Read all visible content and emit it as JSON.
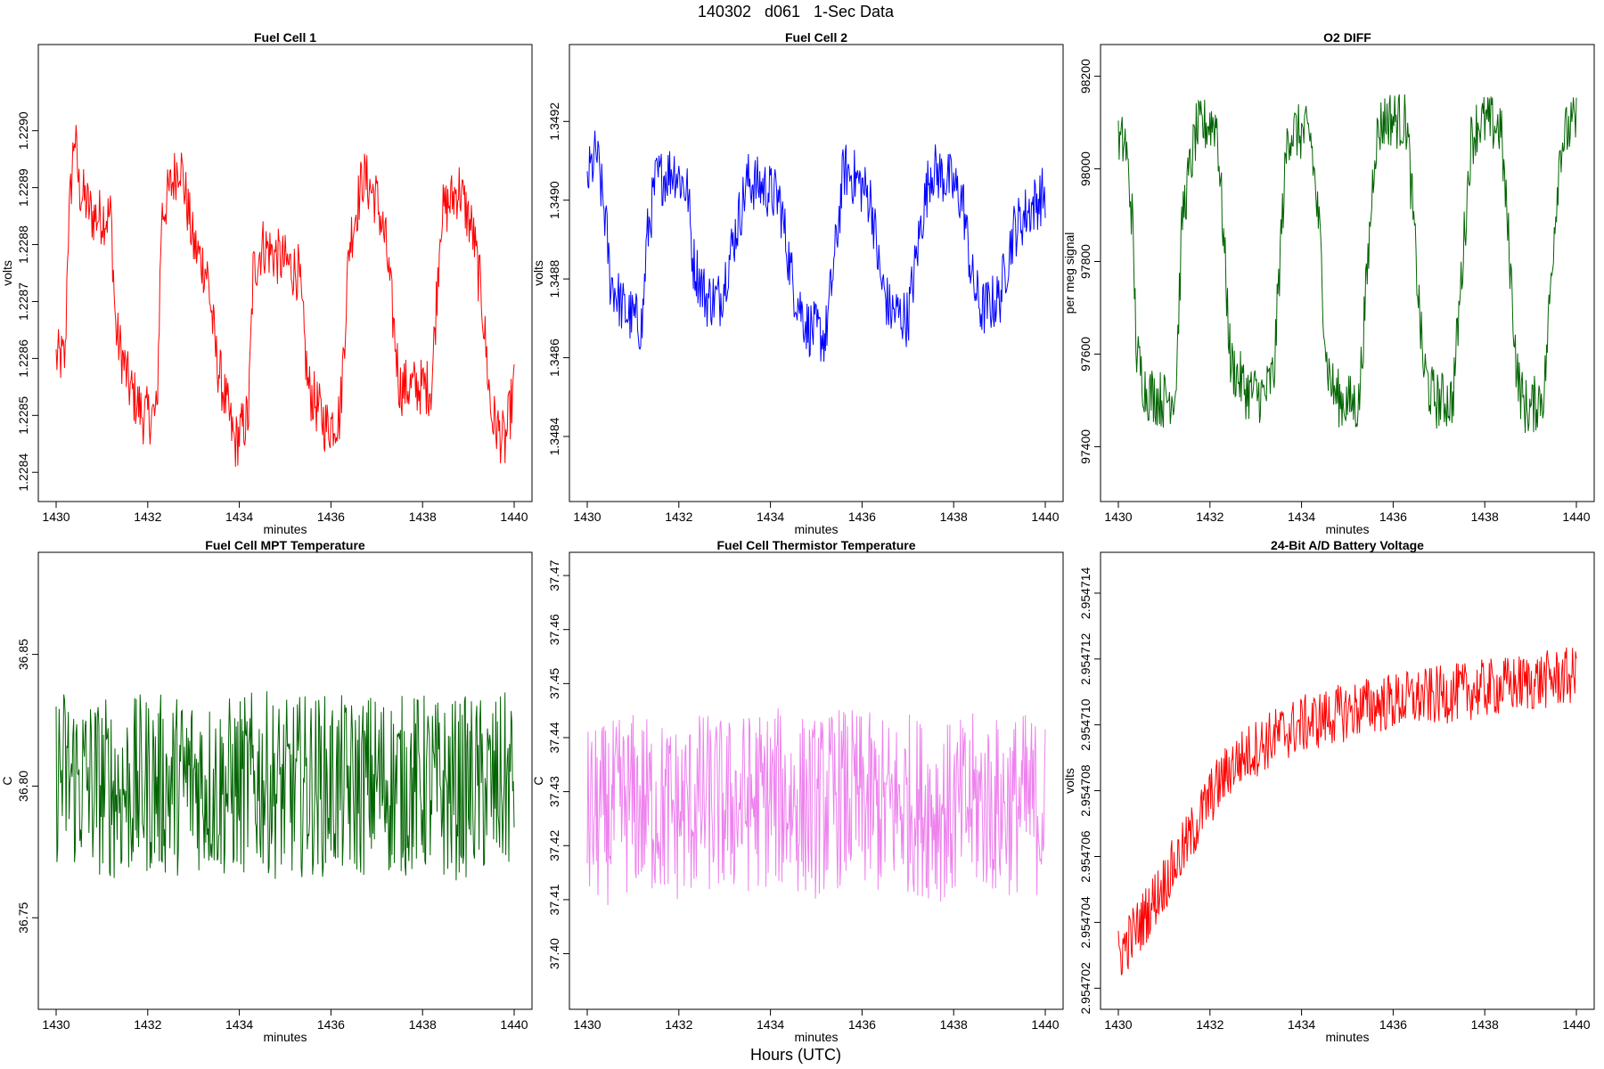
{
  "figure": {
    "suptitle": "140302   d061   1-Sec Data",
    "outer_xlabel": "Hours (UTC)"
  },
  "chart_data": [
    {
      "type": "line",
      "title": "Fuel Cell 1",
      "xlabel": "minutes",
      "ylabel": "volts",
      "color": "#ff0000",
      "xlim": [
        1430,
        1440
      ],
      "ylim": [
        1.22838,
        1.22912
      ],
      "xticks": [
        1430,
        1432,
        1434,
        1436,
        1438,
        1440
      ],
      "yticks": [
        1.2284,
        1.2285,
        1.2286,
        1.2287,
        1.2288,
        1.2289,
        1.229
      ],
      "ytick_labels": [
        "1.2284",
        "1.2285",
        "1.2286",
        "1.2287",
        "1.2288",
        "1.2289",
        "1.2290"
      ],
      "series": [
        {
          "name": "Fuel Cell 1",
          "x": [
            1430.0,
            1430.2,
            1430.25,
            1430.4,
            1430.5,
            1430.8,
            1431.2,
            1431.3,
            1431.6,
            1431.9,
            1432.2,
            1432.3,
            1432.7,
            1433.0,
            1433.3,
            1433.5,
            1433.9,
            1434.2,
            1434.3,
            1434.5,
            1434.8,
            1435.3,
            1435.5,
            1435.9,
            1436.2,
            1436.4,
            1436.7,
            1437.0,
            1437.2,
            1437.5,
            1437.9,
            1438.2,
            1438.4,
            1438.8,
            1439.1,
            1439.3,
            1439.5,
            1439.8,
            1440.0
          ],
          "y": [
            1.2286,
            1.2286,
            1.2288,
            1.229,
            1.2289,
            1.22885,
            1.22885,
            1.22865,
            1.22855,
            1.2285,
            1.2285,
            1.22885,
            1.22895,
            1.2288,
            1.22875,
            1.2286,
            1.22845,
            1.2285,
            1.22875,
            1.2288,
            1.22878,
            1.22875,
            1.22855,
            1.22848,
            1.2285,
            1.2288,
            1.22892,
            1.22888,
            1.2288,
            1.22855,
            1.22855,
            1.22855,
            1.22885,
            1.2289,
            1.22882,
            1.2287,
            1.2285,
            1.22845,
            1.22855
          ]
        }
      ]
    },
    {
      "type": "line",
      "title": "Fuel Cell 2",
      "xlabel": "minutes",
      "ylabel": "volts",
      "color": "#0000ff",
      "xlim": [
        1430,
        1440
      ],
      "ylim": [
        1.34828,
        1.34935
      ],
      "xticks": [
        1430,
        1432,
        1434,
        1436,
        1438,
        1440
      ],
      "yticks": [
        1.3484,
        1.3486,
        1.3488,
        1.349,
        1.3492
      ],
      "ytick_labels": [
        "1.3484",
        "1.3486",
        "1.3488",
        "1.3490",
        "1.3492"
      ],
      "series": [
        {
          "name": "Fuel Cell 2",
          "x": [
            1430.0,
            1430.2,
            1430.4,
            1430.5,
            1430.8,
            1431.2,
            1431.3,
            1431.5,
            1431.9,
            1432.2,
            1432.3,
            1432.6,
            1432.9,
            1433.3,
            1433.5,
            1433.9,
            1434.2,
            1434.5,
            1434.8,
            1435.2,
            1435.4,
            1435.6,
            1435.9,
            1436.2,
            1436.4,
            1436.6,
            1437.0,
            1437.3,
            1437.5,
            1437.9,
            1438.2,
            1438.4,
            1438.6,
            1439.0,
            1439.3,
            1439.6,
            1440.0
          ],
          "y": [
            1.34905,
            1.34912,
            1.34895,
            1.3488,
            1.34872,
            1.34868,
            1.3489,
            1.34905,
            1.34908,
            1.34902,
            1.34885,
            1.34875,
            1.34875,
            1.34895,
            1.34905,
            1.34903,
            1.349,
            1.34878,
            1.34868,
            1.34865,
            1.34885,
            1.34908,
            1.34905,
            1.349,
            1.3488,
            1.34872,
            1.3487,
            1.34895,
            1.34908,
            1.34905,
            1.349,
            1.3488,
            1.34872,
            1.34875,
            1.34892,
            1.34897,
            1.34902
          ]
        }
      ]
    },
    {
      "type": "line",
      "title": "O2 DIFF",
      "xlabel": "minutes",
      "ylabel": "per meg signal",
      "color": "#006400",
      "xlim": [
        1430,
        1440
      ],
      "ylim": [
        97320,
        98230
      ],
      "xticks": [
        1430,
        1432,
        1434,
        1436,
        1438,
        1440
      ],
      "yticks": [
        97400,
        97600,
        97800,
        98000,
        98200
      ],
      "ytick_labels": [
        "97400",
        "97600",
        "97800",
        "98000",
        "98200"
      ],
      "series": [
        {
          "name": "O2 DIFF",
          "x": [
            1430.0,
            1430.15,
            1430.3,
            1430.4,
            1430.6,
            1431.0,
            1431.25,
            1431.4,
            1431.7,
            1432.0,
            1432.15,
            1432.3,
            1432.45,
            1432.8,
            1433.2,
            1433.4,
            1433.55,
            1433.7,
            1433.85,
            1434.2,
            1434.4,
            1434.55,
            1434.7,
            1434.85,
            1435.25,
            1435.45,
            1435.6,
            1435.75,
            1435.9,
            1436.3,
            1436.5,
            1436.65,
            1436.8,
            1436.95,
            1437.3,
            1437.55,
            1437.7,
            1437.85,
            1438.0,
            1438.35,
            1438.55,
            1438.7,
            1438.85,
            1439.0,
            1439.3,
            1439.5,
            1439.65,
            1439.8,
            1440.0
          ],
          "y": [
            98050,
            98060,
            97900,
            97600,
            97520,
            97500,
            97520,
            97900,
            98080,
            98100,
            98100,
            97850,
            97580,
            97520,
            97510,
            97560,
            97850,
            98080,
            98080,
            98070,
            97850,
            97580,
            97520,
            97500,
            97490,
            97800,
            98050,
            98100,
            98110,
            98100,
            97800,
            97580,
            97520,
            97500,
            97500,
            97850,
            98060,
            98100,
            98100,
            98090,
            97800,
            97560,
            97490,
            97480,
            97520,
            97850,
            98050,
            98080,
            98100
          ]
        }
      ]
    },
    {
      "type": "line",
      "title": "Fuel Cell MPT Temperature",
      "xlabel": "minutes",
      "ylabel": "C",
      "color": "#006400",
      "xlim": [
        1430,
        1440
      ],
      "ylim": [
        36.722,
        36.882
      ],
      "xticks": [
        1430,
        1432,
        1434,
        1436,
        1438,
        1440
      ],
      "yticks": [
        36.75,
        36.8,
        36.85
      ],
      "ytick_labels": [
        "36.75",
        "36.80",
        "36.85"
      ],
      "series": [
        {
          "name": "Fuel Cell MPT Temperature",
          "x": [
            1430.0,
            1430.5,
            1431.0,
            1431.5,
            1432.0,
            1432.5,
            1433.0,
            1433.5,
            1434.0,
            1434.5,
            1435.0,
            1435.5,
            1436.0,
            1436.5,
            1437.0,
            1437.5,
            1438.0,
            1438.5,
            1439.0,
            1439.5,
            1440.0
          ],
          "y": [
            36.805,
            36.802,
            36.8,
            36.798,
            36.801,
            36.8,
            36.803,
            36.799,
            36.8,
            36.802,
            36.798,
            36.801,
            36.8,
            36.799,
            36.802,
            36.8,
            36.801,
            36.798,
            36.8,
            36.799,
            36.802
          ],
          "noise_amplitude": 0.035
        }
      ]
    },
    {
      "type": "line",
      "title": "Fuel Cell Thermistor Temperature",
      "xlabel": "minutes",
      "ylabel": "C",
      "color": "#ee82ee",
      "xlim": [
        1430,
        1440
      ],
      "ylim": [
        37.393,
        37.471
      ],
      "xticks": [
        1430,
        1432,
        1434,
        1436,
        1438,
        1440
      ],
      "yticks": [
        37.4,
        37.41,
        37.42,
        37.43,
        37.44,
        37.45,
        37.46,
        37.47
      ],
      "ytick_labels": [
        "37.40",
        "37.41",
        "37.42",
        "37.43",
        "37.44",
        "37.45",
        "37.46",
        "37.47"
      ],
      "series": [
        {
          "name": "Fuel Cell Thermistor Temperature",
          "x": [
            1430.0,
            1430.5,
            1431.0,
            1431.5,
            1432.0,
            1432.5,
            1433.0,
            1433.5,
            1434.0,
            1434.5,
            1435.0,
            1435.5,
            1436.0,
            1436.5,
            1437.0,
            1437.5,
            1438.0,
            1438.5,
            1439.0,
            1439.5,
            1440.0
          ],
          "y": [
            37.425,
            37.426,
            37.428,
            37.427,
            37.426,
            37.428,
            37.427,
            37.428,
            37.429,
            37.428,
            37.427,
            37.429,
            37.428,
            37.427,
            37.428,
            37.427,
            37.426,
            37.428,
            37.427,
            37.428,
            37.427
          ],
          "noise_amplitude": 0.017
        }
      ]
    },
    {
      "type": "line",
      "title": "24-Bit A/D Battery Voltage",
      "xlabel": "minutes",
      "ylabel": "volts",
      "color": "#ff0000",
      "xlim": [
        1430,
        1440
      ],
      "ylim": [
        2.9547019,
        2.9547147
      ],
      "xticks": [
        1430,
        1432,
        1434,
        1436,
        1438,
        1440
      ],
      "yticks": [
        2.954702,
        2.954704,
        2.954706,
        2.954708,
        2.95471,
        2.954712,
        2.954714
      ],
      "ytick_labels": [
        "2.954702",
        "2.954704",
        "2.954706",
        "2.954708",
        "2.954710",
        "2.954712",
        "2.954714"
      ],
      "series": [
        {
          "name": "24-Bit A/D Battery Voltage",
          "x": [
            1430.0,
            1430.5,
            1431.0,
            1431.5,
            1432.0,
            1432.5,
            1433.0,
            1433.5,
            1434.0,
            1434.5,
            1435.0,
            1435.5,
            1436.0,
            1436.5,
            1437.0,
            1437.5,
            1438.0,
            1438.5,
            1439.0,
            1439.5,
            1440.0
          ],
          "y": [
            2.954703,
            2.954704,
            2.9547052,
            2.9547064,
            2.9547078,
            2.9547088,
            2.9547093,
            2.9547097,
            2.95471,
            2.9547102,
            2.9547104,
            2.9547106,
            2.9547107,
            2.9547108,
            2.9547109,
            2.954711,
            2.9547111,
            2.9547112,
            2.9547113,
            2.9547114,
            2.9547115
          ],
          "noise_amplitude": 9e-07
        }
      ]
    }
  ]
}
